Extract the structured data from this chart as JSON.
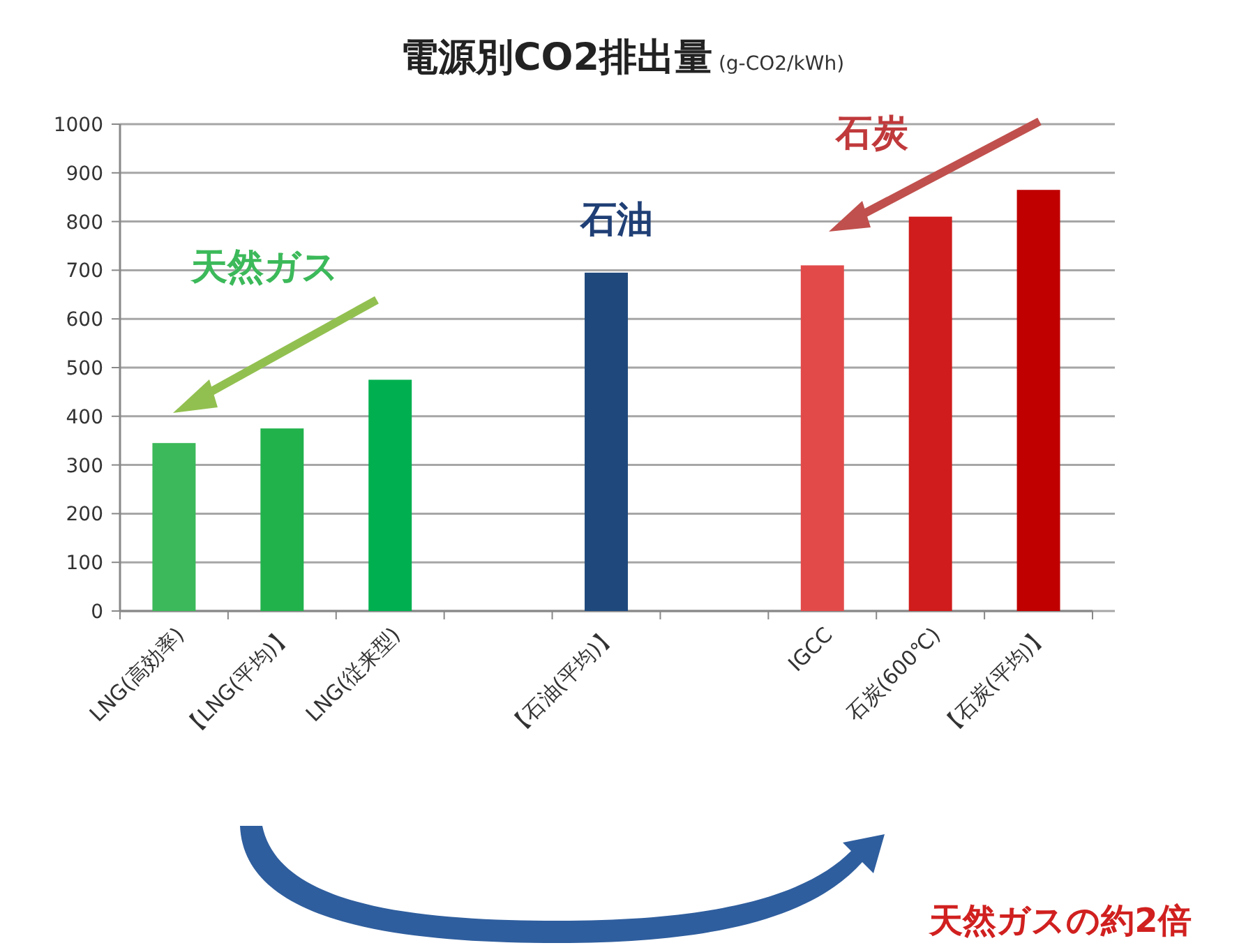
{
  "chart_data": {
    "type": "bar",
    "title": "電源別CO2排出量",
    "subtitle": "(g-CO2/kWh)",
    "categories": [
      "LNG(高効率)",
      "【LNG(平均)】",
      "LNG(従来型)",
      null,
      "【石油(平均)】",
      null,
      "IGCC",
      "石炭(600℃)",
      "【石炭(平均)】"
    ],
    "values": [
      345,
      375,
      475,
      null,
      695,
      null,
      710,
      810,
      865
    ],
    "colors": [
      "#3cb95a",
      "#22b24c",
      "#00b050",
      null,
      "#1f497d",
      null,
      "#e24a4a",
      "#d01c1c",
      "#c00000"
    ],
    "ylim": [
      0,
      1000
    ],
    "yticks": [
      0,
      100,
      200,
      300,
      400,
      500,
      600,
      700,
      800,
      900,
      1000
    ],
    "grid": "y",
    "annotations": [
      "天然ガス",
      "石油",
      "石炭",
      "天然ガスの約2倍"
    ]
  }
}
